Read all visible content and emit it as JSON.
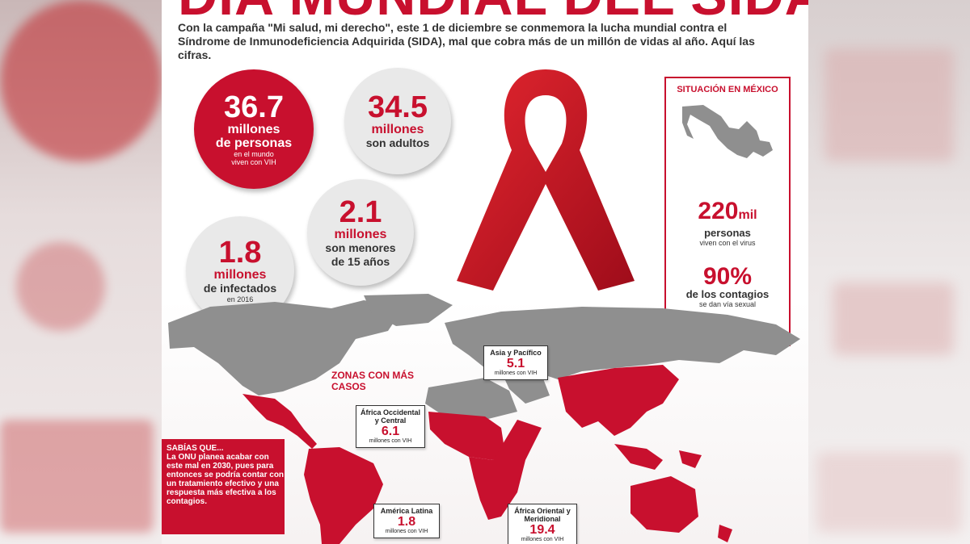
{
  "title": "DÍA MUNDIAL DEL SIDA",
  "intro": "Con la campaña \"Mi salud, mi derecho\", este 1 de diciembre se conmemora la lucha mundial contra el Síndrome de Inmunodeficiencia Adquirida (SIDA), mal que cobra más de un millón de vidas al año. Aquí las cifras.",
  "stats": {
    "total": {
      "value": "36.7",
      "l1": "millones",
      "l2": "de personas",
      "l3": "en el mundo",
      "l4": "viven con VIH"
    },
    "adults": {
      "value": "34.5",
      "l1": "millones",
      "l2": "son adultos"
    },
    "minors": {
      "value": "2.1",
      "l1": "millones",
      "l2": "son menores",
      "l3": "de 15 años"
    },
    "infected": {
      "value": "1.8",
      "l1": "millones",
      "l2": "de infectados",
      "l3": "en 2016"
    }
  },
  "mexico": {
    "heading": "SITUACIÓN EN MÉXICO",
    "people_value": "220",
    "people_unit": "mil",
    "people_l1": "personas",
    "people_l2": "viven con el virus",
    "pct_value": "90%",
    "pct_l1": "de los contagios",
    "pct_l2": "se dan vía sexual"
  },
  "zonas_title": "ZONAS CON MÁS CASOS",
  "regions": {
    "asia": {
      "name": "Asia y Pacífico",
      "value": "5.1",
      "sub": "millones con VIH"
    },
    "africa_oc": {
      "name": "África Occidental y Central",
      "value": "6.1",
      "sub": "millones con VIH"
    },
    "america": {
      "name": "América Latina",
      "value": "1.8",
      "sub": "millones con VIH"
    },
    "africa_or": {
      "name": "África Oriental y Meridional",
      "value": "19.4",
      "sub": "millones con VIH"
    }
  },
  "sabias": {
    "heading": "SABÍAS QUE...",
    "text": "La ONU planea acabar con este mal en 2030, pues para entonces se podría contar con un tratamiento efectivo y una respuesta más efectiva a los contagios."
  },
  "colors": {
    "accent": "#c8102e",
    "grey_circle": "#e9e9e9",
    "map_grey": "#8f8f8f"
  }
}
